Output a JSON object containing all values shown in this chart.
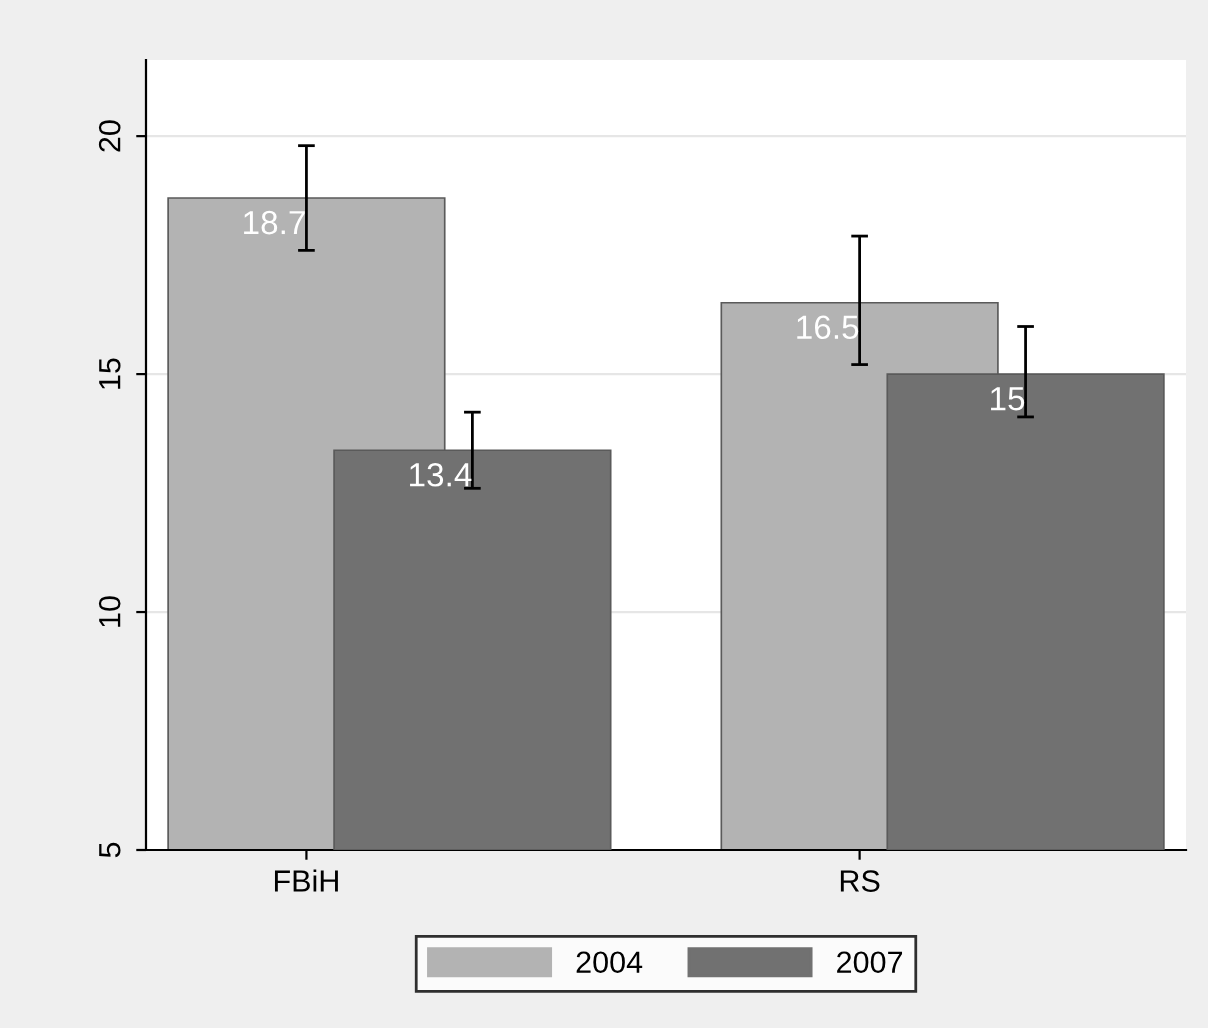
{
  "chart_data": {
    "type": "bar",
    "categories": [
      "FBiH",
      "RS"
    ],
    "series": [
      {
        "name": "2004",
        "color": "#b3b3b3",
        "values": [
          18.7,
          16.5
        ],
        "errors": [
          [
            17.6,
            19.8
          ],
          [
            15.2,
            17.9
          ]
        ]
      },
      {
        "name": "2007",
        "color": "#717171",
        "values": [
          13.4,
          15
        ],
        "errors": [
          [
            12.6,
            14.2
          ],
          [
            14.1,
            16.0
          ]
        ]
      }
    ],
    "ylim": [
      5,
      21.6
    ],
    "yticks": [
      5,
      10,
      15,
      20
    ],
    "grid": "y",
    "legend": "bottom",
    "data_labels": true
  }
}
